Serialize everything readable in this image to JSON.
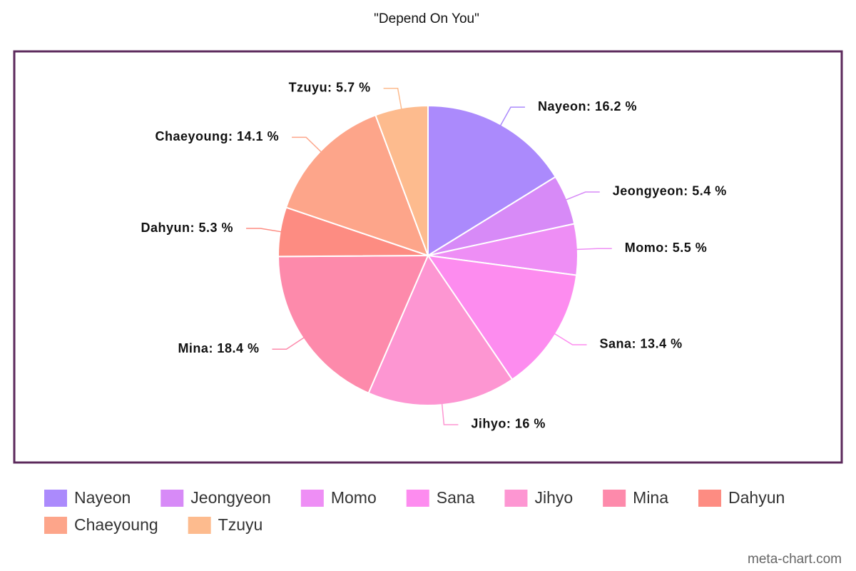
{
  "chart_data": {
    "type": "pie",
    "title": "\"Depend On You\"",
    "categories": [
      "Nayeon",
      "Jeongyeon",
      "Momo",
      "Sana",
      "Jihyo",
      "Mina",
      "Dahyun",
      "Chaeyoung",
      "Tzuyu"
    ],
    "values": [
      16.2,
      5.4,
      5.5,
      13.4,
      16,
      18.4,
      5.3,
      14.1,
      5.7
    ],
    "value_labels": [
      "Nayeon: 16.2 %",
      "Jeongyeon: 5.4 %",
      "Momo: 5.5 %",
      "Sana: 13.4 %",
      "Jihyo: 16 %",
      "Mina: 18.4 %",
      "Dahyun: 5.3 %",
      "Chaeyoung: 14.1 %",
      "Tzuyu: 5.7 %"
    ],
    "colors": [
      "#ab8afc",
      "#d78af7",
      "#ee8ef5",
      "#fd8cef",
      "#fd96d2",
      "#fd8aab",
      "#fd8c82",
      "#fda58a",
      "#fdbb8e"
    ],
    "legend": "bottom",
    "credit": "meta-chart.com"
  }
}
